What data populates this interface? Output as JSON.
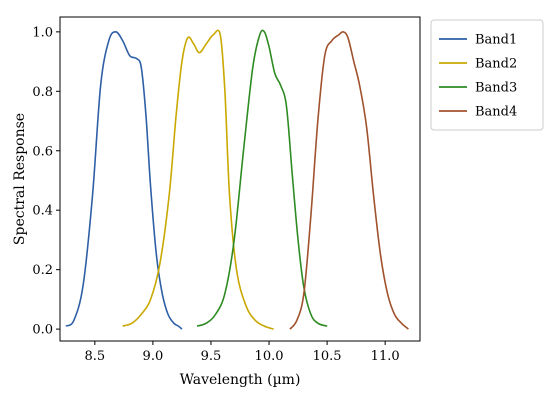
{
  "chart_data": {
    "type": "line",
    "xlabel": "Wavelength (µm)",
    "ylabel": "Spectral Response",
    "xlim": [
      8.2,
      11.3
    ],
    "ylim": [
      -0.04,
      1.05
    ],
    "xticks": [
      8.5,
      9.0,
      9.5,
      10.0,
      10.5,
      11.0
    ],
    "xtick_labels": [
      "8.5",
      "9.0",
      "9.5",
      "10.0",
      "10.5",
      "11.0"
    ],
    "yticks": [
      0.0,
      0.2,
      0.4,
      0.6,
      0.8,
      1.0
    ],
    "ytick_labels": [
      "0.0",
      "0.2",
      "0.4",
      "0.6",
      "0.8",
      "1.0"
    ],
    "grid": false,
    "legend": "outside-top-right",
    "series": [
      {
        "name": "Band1",
        "color": "#2e5fa6",
        "x": [
          8.25,
          8.32,
          8.4,
          8.48,
          8.55,
          8.62,
          8.68,
          8.74,
          8.8,
          8.86,
          8.9,
          8.94,
          8.98,
          9.03,
          9.08,
          9.13,
          9.18,
          9.22,
          9.25
        ],
        "y": [
          0.01,
          0.03,
          0.15,
          0.45,
          0.82,
          0.97,
          1.0,
          0.97,
          0.92,
          0.91,
          0.88,
          0.72,
          0.48,
          0.25,
          0.12,
          0.05,
          0.02,
          0.01,
          0.0
        ]
      },
      {
        "name": "Band2",
        "color": "#c9a800",
        "x": [
          8.74,
          8.82,
          8.9,
          8.98,
          9.06,
          9.14,
          9.2,
          9.25,
          9.3,
          9.35,
          9.4,
          9.46,
          9.52,
          9.58,
          9.62,
          9.66,
          9.72,
          9.8,
          9.88,
          9.96,
          10.04
        ],
        "y": [
          0.01,
          0.02,
          0.05,
          0.1,
          0.22,
          0.45,
          0.72,
          0.9,
          0.98,
          0.96,
          0.93,
          0.96,
          0.99,
          0.99,
          0.8,
          0.45,
          0.2,
          0.08,
          0.03,
          0.01,
          0.0
        ]
      },
      {
        "name": "Band3",
        "color": "#2e8b22",
        "x": [
          9.38,
          9.46,
          9.54,
          9.62,
          9.7,
          9.78,
          9.86,
          9.92,
          9.96,
          10.0,
          10.05,
          10.1,
          10.15,
          10.2,
          10.25,
          10.3,
          10.36,
          10.42,
          10.5
        ],
        "y": [
          0.01,
          0.02,
          0.05,
          0.12,
          0.3,
          0.6,
          0.88,
          0.99,
          1.0,
          0.95,
          0.86,
          0.82,
          0.75,
          0.52,
          0.3,
          0.14,
          0.05,
          0.02,
          0.01
        ]
      },
      {
        "name": "Band4",
        "color": "#a0522d",
        "x": [
          10.18,
          10.24,
          10.3,
          10.36,
          10.42,
          10.48,
          10.54,
          10.6,
          10.64,
          10.68,
          10.73,
          10.78,
          10.84,
          10.9,
          10.96,
          11.02,
          11.08,
          11.14,
          11.2
        ],
        "y": [
          0.0,
          0.03,
          0.12,
          0.38,
          0.7,
          0.92,
          0.97,
          0.99,
          1.0,
          0.98,
          0.9,
          0.82,
          0.68,
          0.45,
          0.25,
          0.12,
          0.05,
          0.02,
          0.0
        ]
      }
    ]
  }
}
